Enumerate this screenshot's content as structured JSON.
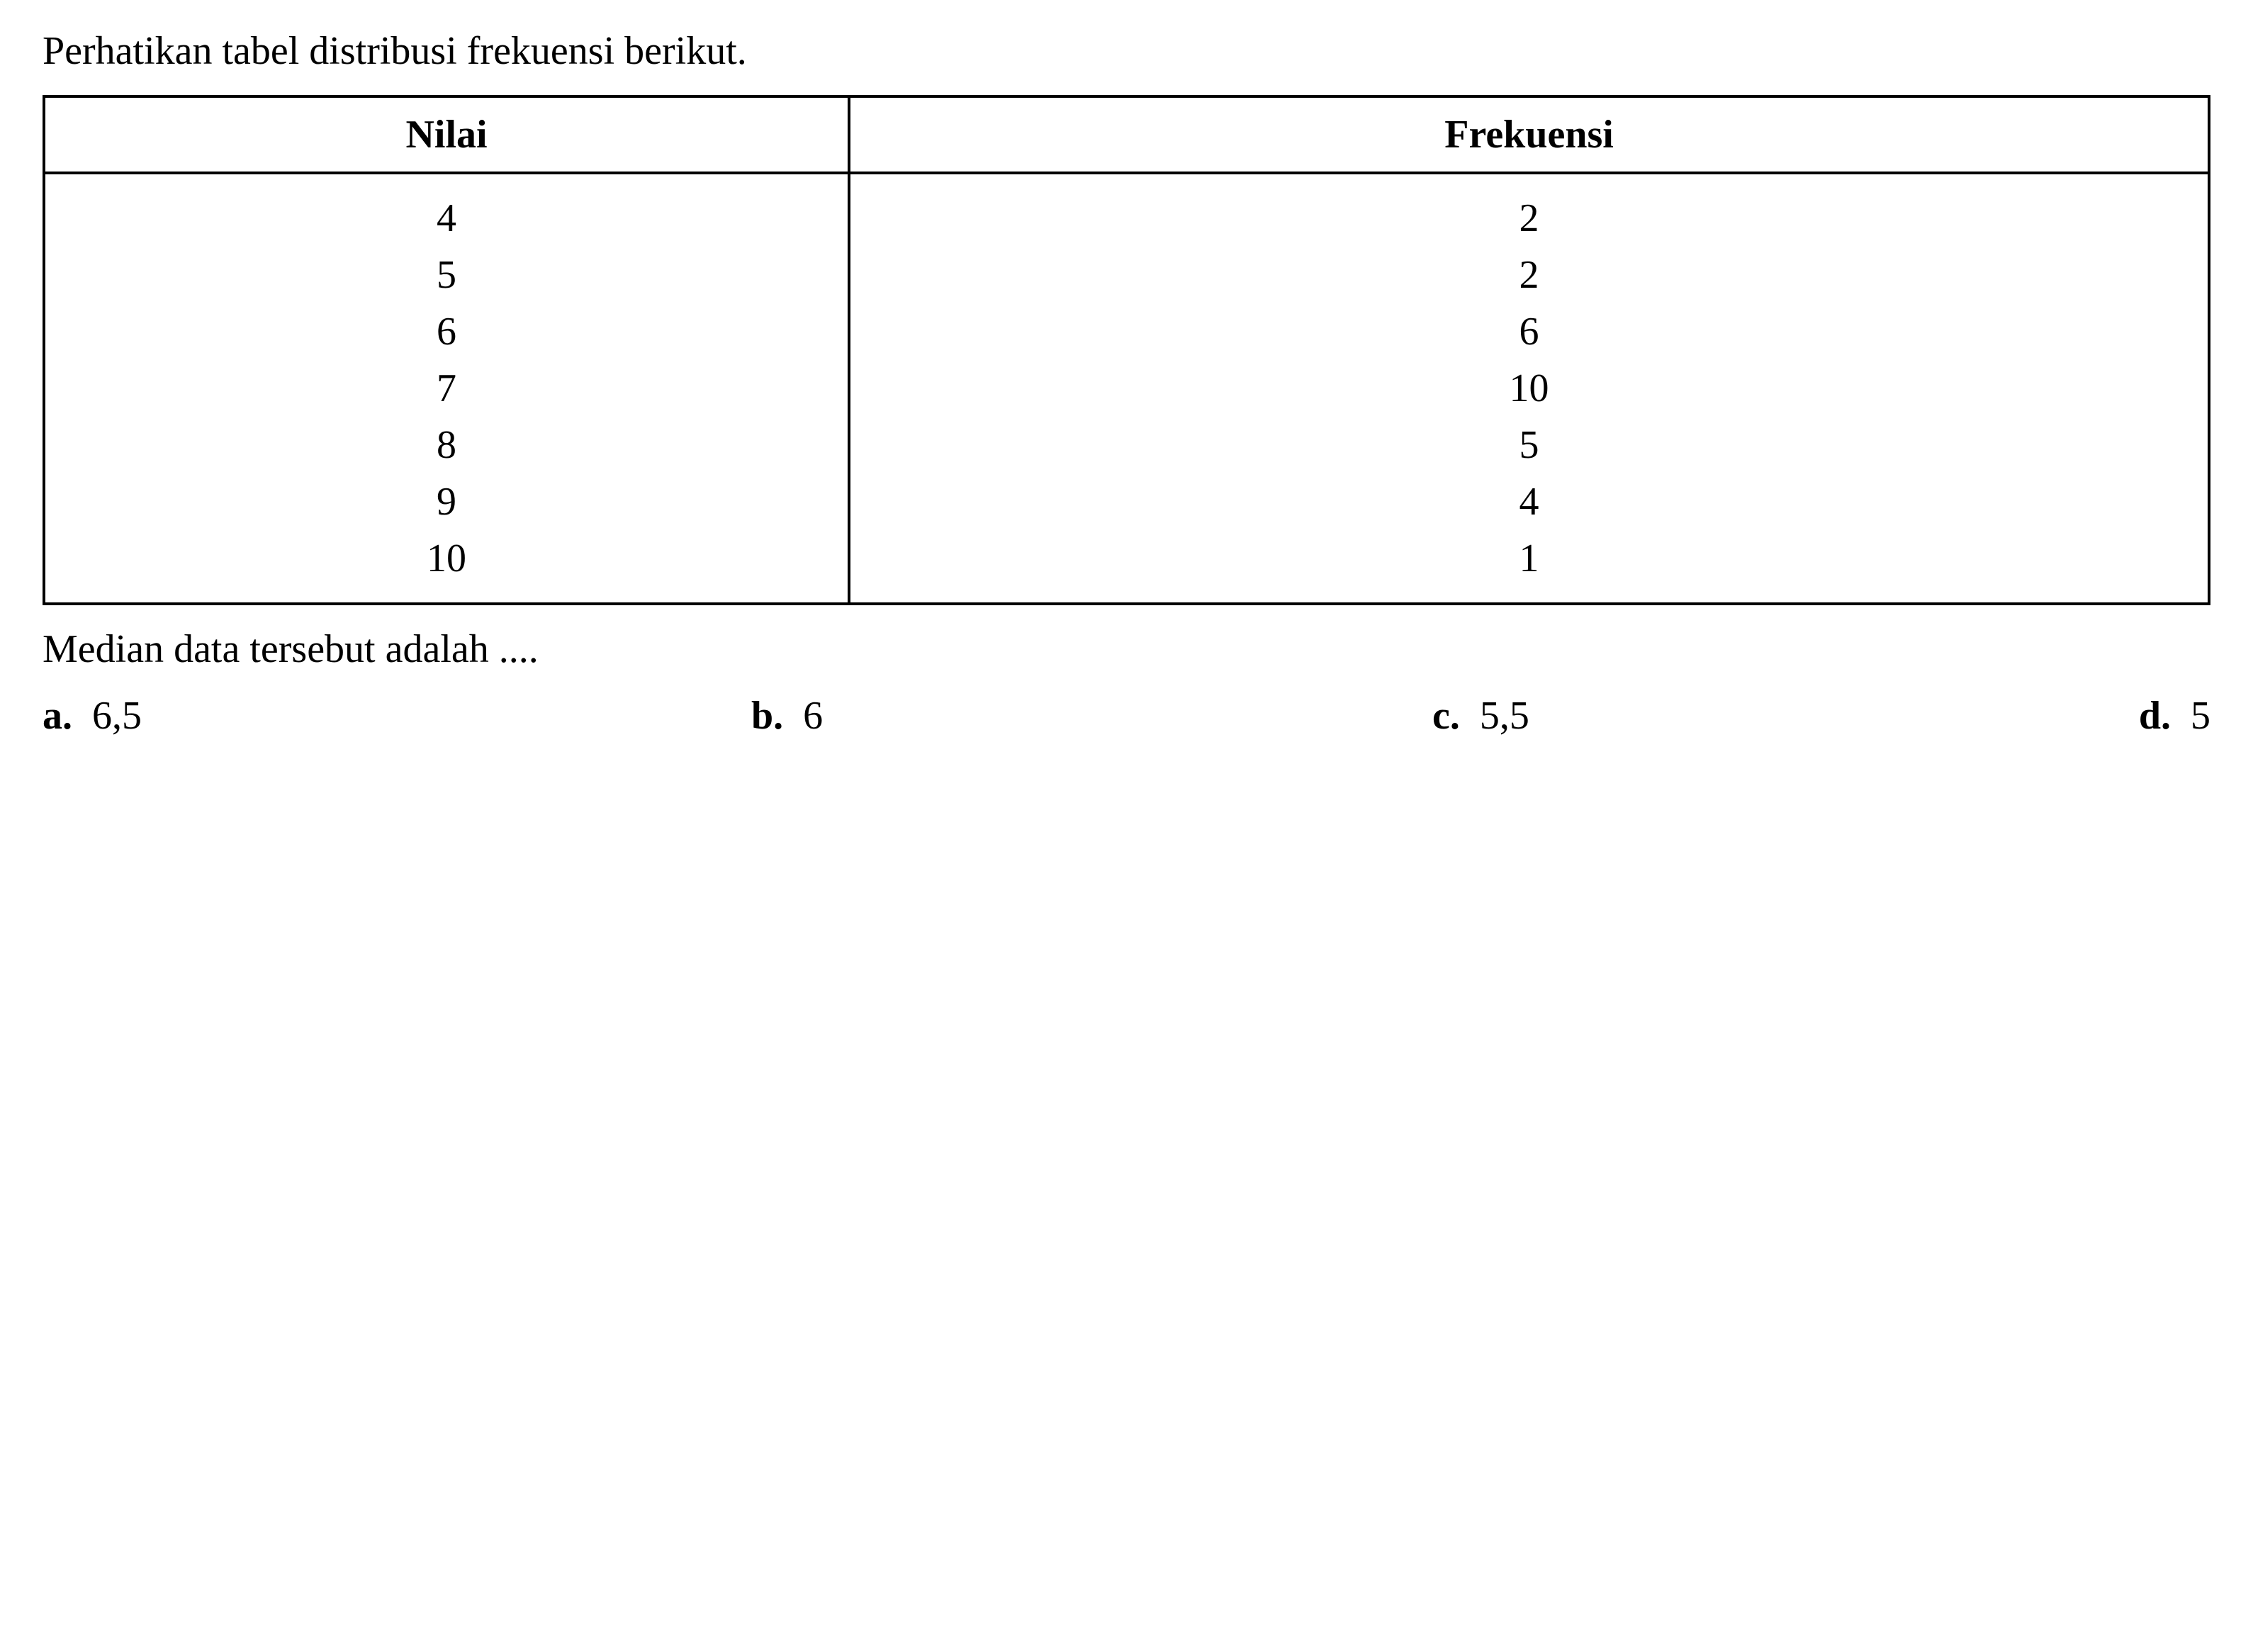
{
  "title": "Perhatikan tabel distribusi frekuensi berikut.",
  "table": {
    "columns": [
      "Nilai",
      "Frekuensi"
    ],
    "rows": [
      [
        "4",
        "2"
      ],
      [
        "5",
        "2"
      ],
      [
        "6",
        "6"
      ],
      [
        "7",
        "10"
      ],
      [
        "8",
        "5"
      ],
      [
        "9",
        "4"
      ],
      [
        "10",
        "1"
      ]
    ],
    "border_color": "#000000",
    "border_width": 4,
    "header_fontsize": 56,
    "cell_fontsize": 56,
    "background_color": "#ffffff",
    "text_color": "#000000"
  },
  "question": "Median data tersebut adalah ....",
  "options": [
    {
      "letter": "a.",
      "value": "6,5"
    },
    {
      "letter": "b.",
      "value": "6"
    },
    {
      "letter": "c.",
      "value": "5,5"
    },
    {
      "letter": "d.",
      "value": "5"
    }
  ],
  "styling": {
    "font_family": "Times New Roman",
    "title_fontsize": 56,
    "question_fontsize": 56,
    "option_fontsize": 56,
    "background_color": "#ffffff",
    "text_color": "#000000"
  }
}
